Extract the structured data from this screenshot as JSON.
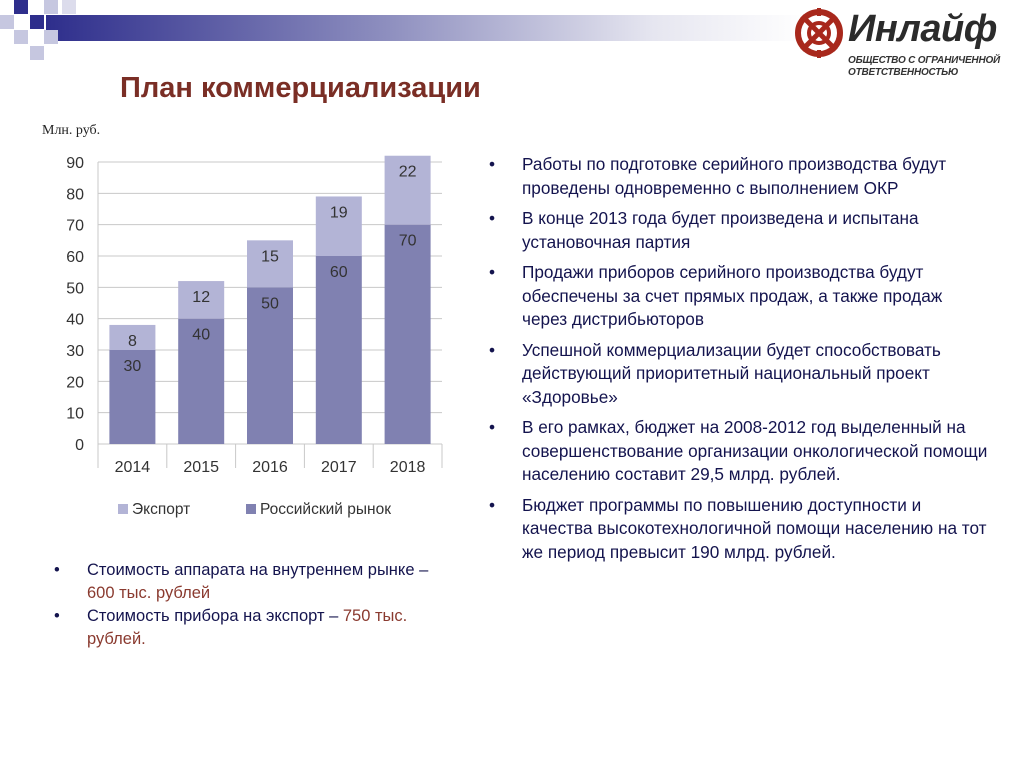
{
  "slide": {
    "title": "План коммерциализации"
  },
  "logo": {
    "name": "Инлайф",
    "subtitle": "Общество с ограниченной ответственностью",
    "icon": "inlife-logo-icon",
    "color": "#a8281c"
  },
  "chart_data": {
    "type": "bar",
    "stacked": true,
    "unit_label": "Млн. руб.",
    "categories": [
      "2014",
      "2015",
      "2016",
      "2017",
      "2018"
    ],
    "series": [
      {
        "name": "Российский рынок",
        "values": [
          30,
          40,
          50,
          60,
          70
        ],
        "color": "#8081b1"
      },
      {
        "name": "Экспорт",
        "values": [
          8,
          12,
          15,
          19,
          22
        ],
        "color": "#b3b4d6"
      }
    ],
    "ylim": [
      0,
      90
    ],
    "yticks": [
      0,
      10,
      20,
      30,
      40,
      50,
      60,
      70,
      80,
      90
    ],
    "grid": true,
    "legend": "bottom"
  },
  "right_bullets": [
    "Работы по подготовке серийного производства будут проведены одновременно с выполнением ОКР",
    "В конце 2013 года будет произведена и испытана установочная партия",
    "Продажи приборов серийного производства будут обеспечены за счет прямых продаж, а также продаж  через дистрибьюторов",
    "Успешной коммерциализации будет способствовать действующий приоритетный национальный проект «Здоровье»",
    "В его рамках, бюджет на 2008-2012 год выделенный на совершенствование организации онкологической помощи населению составит 29,5 млрд. рублей.",
    "Бюджет программы по повышению доступности и качества высокотехнологичной помощи населению на тот же период превысит 190 млрд. рублей."
  ],
  "left_bullets": [
    {
      "text": "Стоимость аппарата на внутреннем рынке",
      "dash": " – ",
      "price": "600 тыс. рублей"
    },
    {
      "text": "Стоимость прибора на экспорт",
      "dash": " – ",
      "price": "750 тыс. рублей."
    }
  ]
}
